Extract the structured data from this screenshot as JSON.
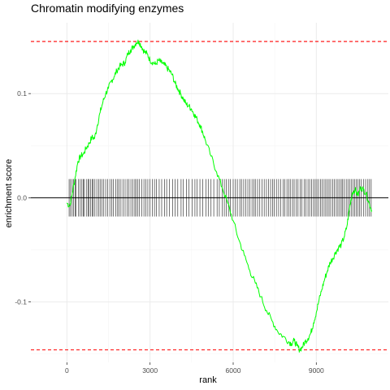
{
  "chart_data": {
    "type": "line",
    "title": "Chromatin modifying enzymes",
    "xlabel": "rank",
    "ylabel": "enrichment score",
    "xlim": [
      -1300,
      11600
    ],
    "ylim": [
      -0.158,
      0.168
    ],
    "x_ticks": [
      0,
      3000,
      6000,
      9000
    ],
    "x_tick_labels": [
      "0",
      "3000",
      "6000",
      "9000"
    ],
    "y_ticks": [
      -0.1,
      0.0,
      0.1
    ],
    "y_tick_labels": [
      "-0.1",
      "0.0",
      "0.1"
    ],
    "grid": true,
    "series": [
      {
        "color": "#00ff00",
        "x": [
          0,
          100,
          200,
          300,
          400,
          500,
          600,
          700,
          800,
          900,
          1000,
          1100,
          1200,
          1300,
          1400,
          1500,
          1600,
          1700,
          1800,
          1900,
          2000,
          2100,
          2200,
          2300,
          2400,
          2500,
          2600,
          2700,
          2800,
          2900,
          3000,
          3100,
          3200,
          3300,
          3400,
          3500,
          3600,
          3700,
          3800,
          3900,
          4000,
          4100,
          4200,
          4300,
          4400,
          4500,
          4600,
          4700,
          4800,
          4900,
          5000,
          5200,
          5400,
          5600,
          5800,
          6000,
          6200,
          6400,
          6600,
          6800,
          7000,
          7200,
          7400,
          7600,
          7800,
          8000,
          8100,
          8200,
          8300,
          8400,
          8500,
          8600,
          8700,
          8800,
          8900,
          9000,
          9100,
          9200,
          9300,
          9400,
          9500,
          9600,
          9700,
          9800,
          9900,
          10000,
          10100,
          10200,
          10300,
          10400,
          10500,
          10600,
          10700,
          10800,
          10900,
          11000
        ],
        "y": [
          -0.005,
          -0.008,
          0.005,
          0.02,
          0.035,
          0.04,
          0.042,
          0.048,
          0.052,
          0.058,
          0.057,
          0.07,
          0.082,
          0.092,
          0.1,
          0.105,
          0.112,
          0.116,
          0.122,
          0.126,
          0.128,
          0.13,
          0.138,
          0.142,
          0.145,
          0.149,
          0.15,
          0.145,
          0.14,
          0.138,
          0.132,
          0.13,
          0.128,
          0.132,
          0.13,
          0.128,
          0.125,
          0.122,
          0.118,
          0.11,
          0.105,
          0.1,
          0.095,
          0.09,
          0.088,
          0.085,
          0.08,
          0.075,
          0.07,
          0.063,
          0.055,
          0.04,
          0.025,
          0.01,
          -0.005,
          -0.022,
          -0.04,
          -0.055,
          -0.07,
          -0.082,
          -0.095,
          -0.108,
          -0.118,
          -0.128,
          -0.133,
          -0.138,
          -0.14,
          -0.137,
          -0.142,
          -0.146,
          -0.143,
          -0.138,
          -0.135,
          -0.13,
          -0.12,
          -0.11,
          -0.098,
          -0.088,
          -0.078,
          -0.07,
          -0.062,
          -0.058,
          -0.052,
          -0.048,
          -0.045,
          -0.038,
          -0.028,
          -0.01,
          0.005,
          0.008,
          0.002,
          0.01,
          0.008,
          0.004,
          -0.005,
          -0.012
        ]
      }
    ],
    "reference_lines": {
      "color": "#ff0000",
      "y": [
        0.15,
        -0.146
      ]
    },
    "gene_hits": [
      80,
      130,
      190,
      240,
      300,
      330,
      420,
      480,
      540,
      590,
      620,
      700,
      760,
      790,
      850,
      910,
      950,
      1010,
      1080,
      1150,
      1200,
      1260,
      1330,
      1400,
      1470,
      1550,
      1620,
      1680,
      1760,
      1830,
      1880,
      1950,
      2030,
      2100,
      2180,
      2240,
      2310,
      2380,
      2450,
      2490,
      2560,
      2620,
      2700,
      2780,
      2850,
      2920,
      3000,
      3080,
      3160,
      3230,
      3330,
      3420,
      3520,
      3600,
      3700,
      3820,
      3900,
      4000,
      4120,
      4200,
      4310,
      4400,
      4520,
      4620,
      4700,
      4800,
      4900,
      5020,
      5100,
      5200,
      5300,
      5420,
      5500,
      5600,
      5680,
      5750,
      5830,
      5900,
      6000,
      6080,
      6150,
      6240,
      6300,
      6380,
      6450,
      6530,
      6600,
      6680,
      6750,
      6800,
      6880,
      6960,
      7040,
      7120,
      7200,
      7280,
      7350,
      7420,
      7480,
      7560,
      7640,
      7720,
      7800,
      7860,
      7940,
      8000,
      8060,
      8140,
      8200,
      8280,
      8340,
      8420,
      8480,
      8560,
      8620,
      8700,
      8760,
      8830,
      8900,
      8960,
      9020,
      9080,
      9150,
      9210,
      9280,
      9340,
      9400,
      9460,
      9520,
      9590,
      9650,
      9720,
      9780,
      9840,
      9900,
      9950,
      10010,
      10080,
      10140,
      10200,
      10260,
      10320,
      10380,
      10440,
      10500,
      10560,
      10620,
      10700,
      10780,
      10860,
      10920,
      10980
    ]
  }
}
